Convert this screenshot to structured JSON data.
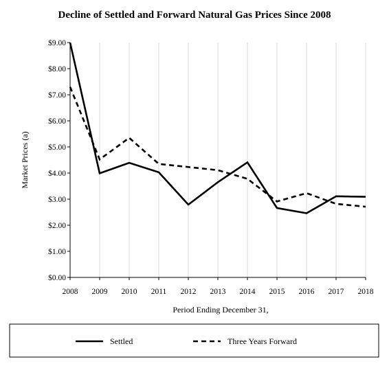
{
  "chart_data": {
    "type": "line",
    "title": "Decline of Settled and Forward Natural Gas Prices Since 2008",
    "xlabel": "Period Ending December 31,",
    "ylabel": "Market Prices (a)",
    "categories": [
      "2008",
      "2009",
      "2010",
      "2011",
      "2012",
      "2013",
      "2014",
      "2015",
      "2016",
      "2017",
      "2018"
    ],
    "ylim": [
      0,
      9
    ],
    "yticks": [
      0,
      1,
      2,
      3,
      4,
      5,
      6,
      7,
      8,
      9
    ],
    "ytick_labels": [
      "$0.00",
      "$1.00",
      "$2.00",
      "$3.00",
      "$4.00",
      "$5.00",
      "$6.00",
      "$7.00",
      "$8.00",
      "$9.00"
    ],
    "grid": "vertical",
    "legend_position": "bottom",
    "series": [
      {
        "name": "Settled",
        "style": "solid",
        "values": [
          9.0,
          3.99,
          4.39,
          4.03,
          2.79,
          3.65,
          4.41,
          2.66,
          2.46,
          3.11,
          3.09
        ]
      },
      {
        "name": "Three Years Forward",
        "style": "dashed",
        "values": [
          7.3,
          4.52,
          5.35,
          4.35,
          4.23,
          4.11,
          3.78,
          2.91,
          3.23,
          2.82,
          2.71
        ]
      }
    ]
  }
}
